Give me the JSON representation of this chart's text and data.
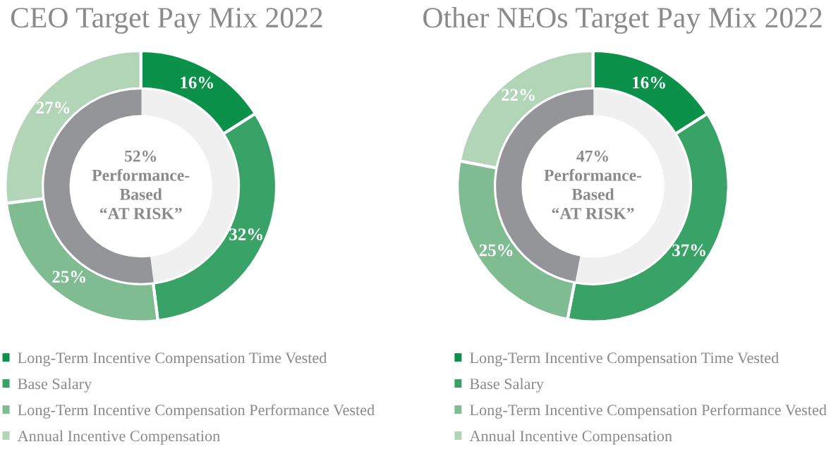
{
  "chart_data": [
    {
      "type": "donut",
      "title": "CEO Target Pay Mix 2022",
      "categories": [
        "Long-Term Incentive Compensation Time Vested",
        "Base Salary",
        "Long-Term Incentive Compensation Performance Vested",
        "Annual Incentive Compensation"
      ],
      "legend": "bottom",
      "series": [
        {
          "values": [
            16,
            32,
            25,
            27
          ],
          "colors": [
            "#0b9149",
            "#38a267",
            "#80bc92",
            "#b2d5b8"
          ],
          "value_labels": [
            "16%",
            "32%",
            "25%",
            "27%"
          ]
        },
        {
          "values": [
            16,
            32,
            25,
            27
          ],
          "colors": [
            "#f0f0f0",
            "#f0f0f0",
            "#939598",
            "#939598"
          ]
        }
      ],
      "annotations": [
        "52%\nPerformance-\nBased\n“AT RISK”"
      ]
    },
    {
      "type": "donut",
      "title": "Other NEOs Target Pay Mix 2022",
      "categories": [
        "Long-Term Incentive Compensation Time Vested",
        "Base Salary",
        "Long-Term Incentive Compensation Performance Vested",
        "Annual Incentive Compensation"
      ],
      "legend": "bottom",
      "series": [
        {
          "values": [
            16,
            37,
            25,
            22
          ],
          "colors": [
            "#0b9149",
            "#38a267",
            "#80bc92",
            "#b2d5b8"
          ],
          "value_labels": [
            "16%",
            "37%",
            "25%",
            "22%"
          ]
        },
        {
          "values": [
            16,
            37,
            25,
            22
          ],
          "colors": [
            "#f0f0f0",
            "#f0f0f0",
            "#939598",
            "#939598"
          ]
        }
      ],
      "annotations": [
        "47%\nPerformance-\nBased\n“AT RISK”"
      ]
    }
  ]
}
